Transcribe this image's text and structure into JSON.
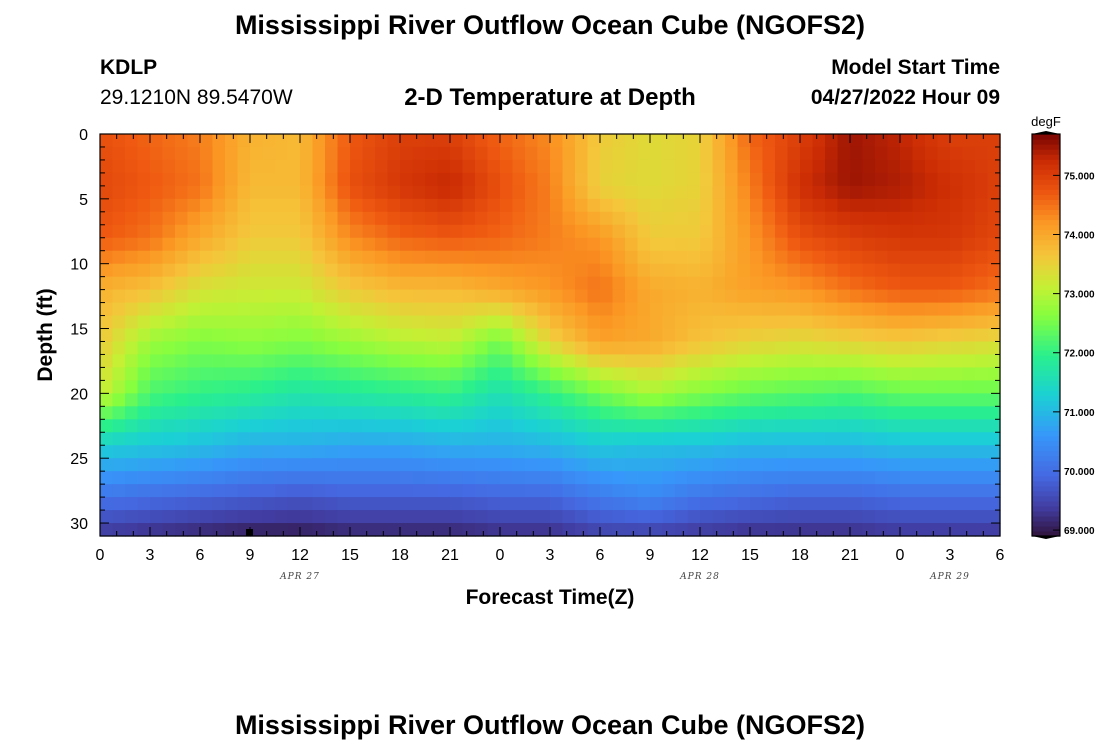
{
  "page": {
    "title": "Mississippi River Outflow Ocean Cube (NGOFS2)",
    "title_bottom": "Mississippi River Outflow Ocean Cube (NGOFS2)"
  },
  "station": {
    "id": "KDLP",
    "coords": "29.1210N  89.5470W"
  },
  "model": {
    "label": "Model Start Time",
    "time": "04/27/2022 Hour 09"
  },
  "chart_data": {
    "type": "heatmap",
    "title": "2-D Temperature at Depth",
    "xlabel": "Forecast Time(Z)",
    "ylabel": "Depth (ft)",
    "x_tick_labels": [
      "0",
      "3",
      "6",
      "9",
      "12",
      "15",
      "18",
      "21",
      "0",
      "3",
      "6",
      "9",
      "12",
      "15",
      "18",
      "21",
      "0",
      "3",
      "6"
    ],
    "x_range_hours": [
      0,
      54
    ],
    "date_labels": [
      {
        "label": "APR 27",
        "hour": 12
      },
      {
        "label": "APR 28",
        "hour": 36
      },
      {
        "label": "APR 29",
        "hour": 51
      }
    ],
    "y_ticks": [
      0,
      5,
      10,
      15,
      20,
      25,
      30
    ],
    "ylim": [
      0,
      31
    ],
    "y_inverted": true,
    "colorbar": {
      "unit": "degF",
      "range": [
        68.9,
        75.7
      ],
      "tick_values": [
        69.0,
        70.0,
        71.0,
        72.0,
        73.0,
        74.0,
        75.0
      ],
      "tick_labels": [
        "69.000",
        "70.000",
        "71.000",
        "72.000",
        "73.000",
        "74.000",
        "75.000"
      ]
    },
    "temperature_profiles": {
      "hours": [
        0,
        3,
        6,
        9,
        12,
        15,
        18,
        21,
        24,
        27,
        30,
        33,
        36,
        39,
        42,
        45,
        48,
        51,
        54
      ],
      "depths": [
        0,
        4,
        8,
        12,
        16,
        20,
        24,
        28,
        31
      ],
      "values": [
        [
          74.8,
          74.9,
          74.7,
          73.9,
          73.6,
          73.2,
          71.3,
          70.1,
          69.3
        ],
        [
          74.6,
          74.7,
          74.5,
          73.7,
          72.8,
          72.2,
          71.2,
          70.0,
          69.2
        ],
        [
          74.4,
          74.5,
          74.0,
          73.3,
          72.6,
          72.0,
          71.1,
          69.9,
          69.1
        ],
        [
          73.9,
          73.8,
          73.6,
          73.2,
          72.7,
          71.9,
          70.9,
          69.8,
          69.0
        ],
        [
          73.8,
          73.8,
          73.6,
          73.2,
          72.6,
          71.7,
          70.9,
          69.7,
          69.0
        ],
        [
          74.7,
          74.8,
          74.3,
          73.6,
          72.8,
          71.8,
          70.8,
          69.8,
          69.1
        ],
        [
          75.0,
          75.1,
          74.6,
          73.8,
          73.0,
          71.9,
          70.8,
          69.8,
          69.1
        ],
        [
          75.0,
          75.3,
          74.7,
          73.8,
          73.1,
          72.0,
          70.9,
          69.8,
          69.1
        ],
        [
          74.6,
          74.8,
          74.6,
          74.0,
          72.5,
          71.6,
          70.9,
          69.9,
          69.2
        ],
        [
          74.3,
          74.4,
          74.4,
          74.2,
          73.5,
          72.0,
          71.0,
          69.9,
          69.2
        ],
        [
          73.6,
          73.5,
          74.2,
          74.5,
          74.1,
          72.5,
          71.2,
          70.2,
          69.4
        ],
        [
          73.4,
          73.4,
          73.6,
          74.0,
          74.0,
          72.9,
          71.1,
          70.4,
          69.4
        ],
        [
          73.5,
          73.5,
          73.6,
          73.9,
          73.7,
          72.6,
          71.1,
          70.1,
          69.3
        ],
        [
          74.6,
          74.4,
          74.2,
          74.1,
          73.5,
          72.4,
          71.0,
          70.0,
          69.2
        ],
        [
          75.0,
          75.2,
          74.8,
          74.2,
          73.4,
          72.3,
          71.0,
          69.9,
          69.2
        ],
        [
          75.5,
          75.5,
          75.0,
          74.5,
          73.5,
          72.2,
          71.0,
          69.9,
          69.2
        ],
        [
          75.3,
          75.4,
          75.1,
          74.7,
          73.6,
          72.4,
          71.1,
          70.0,
          69.3
        ],
        [
          75.0,
          75.2,
          75.1,
          74.7,
          73.5,
          72.4,
          71.1,
          70.0,
          69.3
        ],
        [
          75.0,
          75.0,
          74.9,
          74.5,
          73.4,
          72.4,
          71.1,
          70.0,
          69.3
        ]
      ]
    }
  }
}
